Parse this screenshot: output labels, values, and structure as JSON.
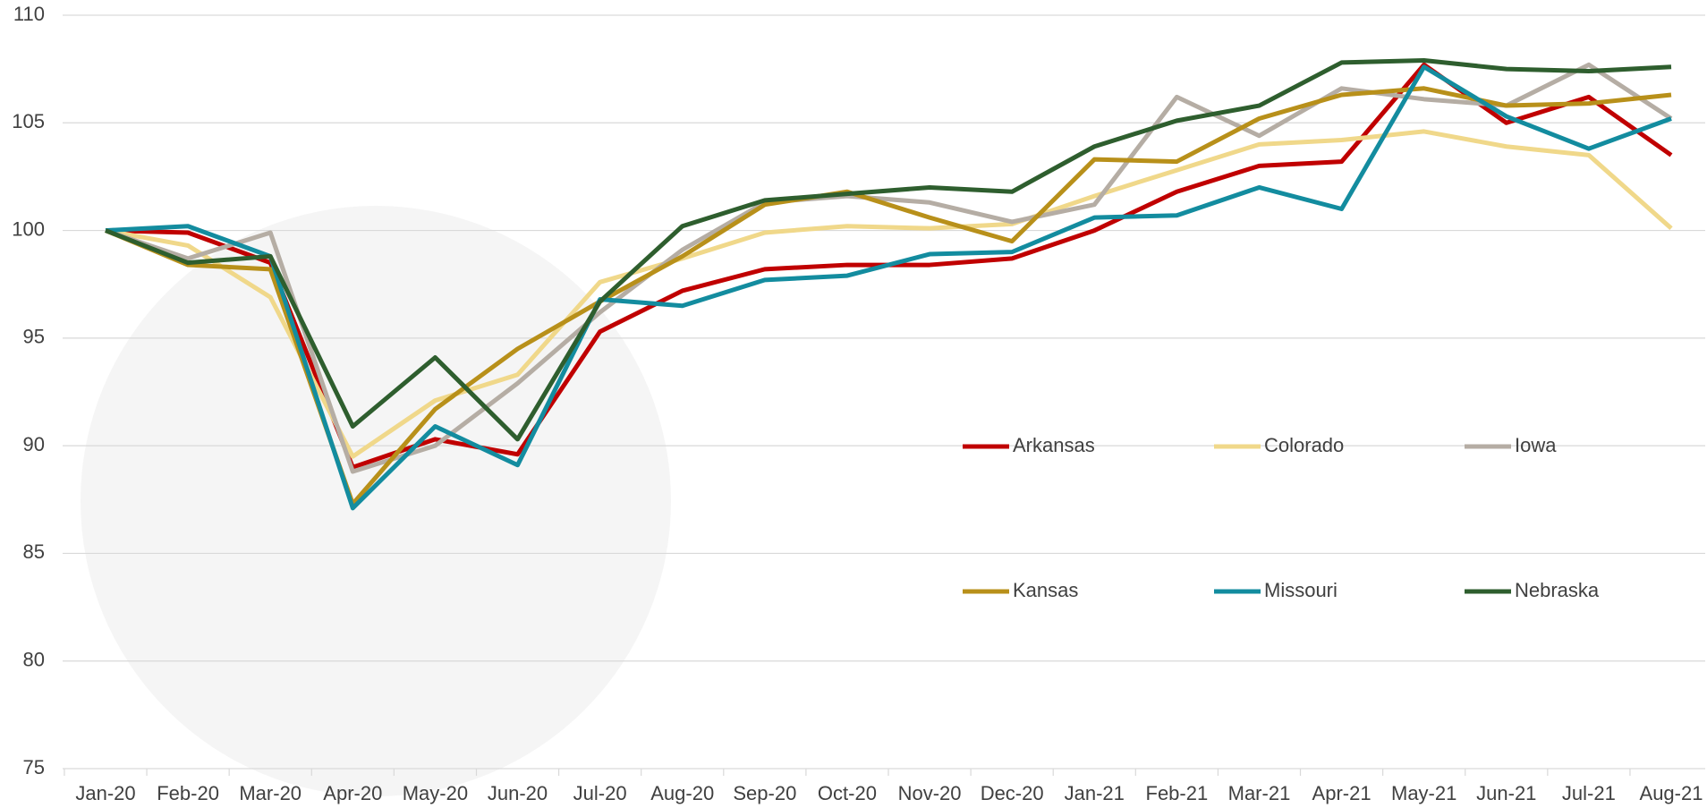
{
  "chart_data": {
    "type": "line",
    "categories": [
      "Jan-20",
      "Feb-20",
      "Mar-20",
      "Apr-20",
      "May-20",
      "Jun-20",
      "Jul-20",
      "Aug-20",
      "Sep-20",
      "Oct-20",
      "Nov-20",
      "Dec-20",
      "Jan-21",
      "Feb-21",
      "Mar-21",
      "Apr-21",
      "May-21",
      "Jun-21",
      "Jul-21",
      "Aug-21"
    ],
    "series": [
      {
        "name": "Arkansas",
        "color": "#c00000",
        "values": [
          100,
          99.9,
          98.5,
          89.0,
          90.3,
          89.6,
          95.3,
          97.2,
          98.2,
          98.4,
          98.4,
          98.7,
          100.0,
          101.8,
          103.0,
          103.2,
          107.7,
          105.0,
          106.2,
          103.5
        ]
      },
      {
        "name": "Colorado",
        "color": "#f0d88a",
        "values": [
          100,
          99.3,
          96.9,
          89.5,
          92.1,
          93.3,
          97.6,
          98.7,
          99.9,
          100.2,
          100.1,
          100.3,
          101.6,
          102.8,
          104.0,
          104.2,
          104.6,
          103.9,
          103.5,
          100.1
        ]
      },
      {
        "name": "Iowa",
        "color": "#b5ada4",
        "values": [
          100,
          98.7,
          99.9,
          88.8,
          90.0,
          92.9,
          96.2,
          99.1,
          101.3,
          101.6,
          101.3,
          100.4,
          101.2,
          106.2,
          104.4,
          106.6,
          106.1,
          105.8,
          107.7,
          105.2
        ]
      },
      {
        "name": "Kansas",
        "color": "#b8901a",
        "values": [
          100,
          98.4,
          98.2,
          87.3,
          91.7,
          94.5,
          96.7,
          98.8,
          101.2,
          101.8,
          100.6,
          99.5,
          103.3,
          103.2,
          105.2,
          106.3,
          106.6,
          105.8,
          105.9,
          106.3
        ]
      },
      {
        "name": "Missouri",
        "color": "#138c9f",
        "values": [
          100,
          100.2,
          98.8,
          87.1,
          90.9,
          89.1,
          96.8,
          96.5,
          97.7,
          97.9,
          98.9,
          99.0,
          100.6,
          100.7,
          102.0,
          101.0,
          107.6,
          105.3,
          103.8,
          105.2
        ]
      },
      {
        "name": "Nebraska",
        "color": "#2e5e2e",
        "values": [
          100,
          98.5,
          98.8,
          90.9,
          94.1,
          90.3,
          96.7,
          100.2,
          101.4,
          101.7,
          102.0,
          101.8,
          103.9,
          105.1,
          105.8,
          107.8,
          107.9,
          107.5,
          107.4,
          107.6
        ]
      }
    ],
    "ylim": [
      75,
      110
    ],
    "yticks": [
      75,
      80,
      85,
      90,
      95,
      100,
      105,
      110
    ],
    "grid": true,
    "legend": "center-right"
  }
}
